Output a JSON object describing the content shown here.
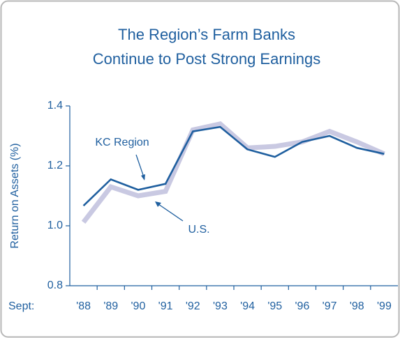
{
  "chart_data": {
    "type": "line",
    "title": [
      "The Region’s Farm Banks",
      "Continue to Post Strong Earnings"
    ],
    "y_label": "Return on Assets (%)",
    "x_label": "Sept:",
    "categories": [
      "'88",
      "'89",
      "'90",
      "'91",
      "'92",
      "'93",
      "'94",
      "'95",
      "'96",
      "'97",
      "'98",
      "'99"
    ],
    "series": [
      {
        "name": "U.S.",
        "color": "#c9c9e2",
        "values": [
          1.012,
          1.13,
          1.1,
          1.115,
          1.32,
          1.34,
          1.26,
          1.265,
          1.28,
          1.315,
          1.28,
          1.24
        ]
      },
      {
        "name": "KC Region",
        "color": "#1f5f9f",
        "values": [
          1.067,
          1.155,
          1.12,
          1.14,
          1.315,
          1.33,
          1.255,
          1.23,
          1.28,
          1.3,
          1.26,
          1.24
        ]
      }
    ],
    "ylim": [
      0.8,
      1.4
    ],
    "yticks": [
      0.8,
      {
        "value": 1,
        "label": "1.0"
      },
      1.2,
      1.4
    ]
  }
}
